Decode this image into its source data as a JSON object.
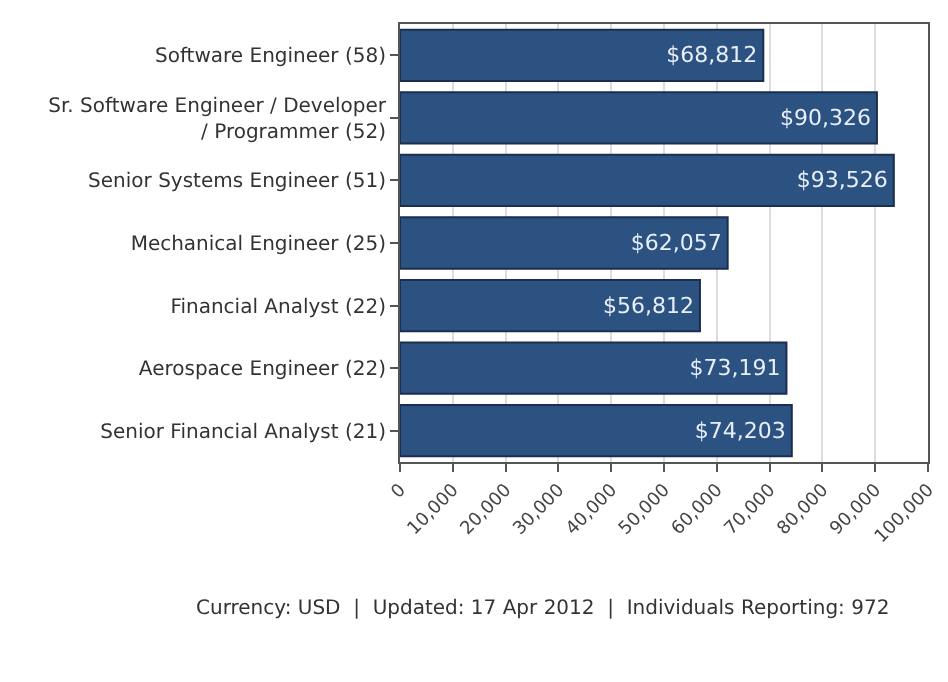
{
  "chart_data": {
    "type": "bar",
    "orientation": "horizontal",
    "categories": [
      "Software Engineer (58)",
      "Sr. Software Engineer / Developer / Programmer (52)",
      "Senior Systems Engineer (51)",
      "Mechanical Engineer (25)",
      "Financial Analyst (22)",
      "Aerospace Engineer (22)",
      "Senior Financial Analyst (21)"
    ],
    "values": [
      68812,
      90326,
      93526,
      62057,
      56812,
      73191,
      74203
    ],
    "value_labels": [
      "$68,812",
      "$90,326",
      "$93,526",
      "$62,057",
      "$56,812",
      "$73,191",
      "$74,203"
    ],
    "color": "#2c5282",
    "xlim": [
      0,
      100000
    ],
    "xticks": [
      {
        "value": 0,
        "label": "0"
      },
      {
        "value": 10000,
        "label": "10,000"
      },
      {
        "value": 20000,
        "label": "20,000"
      },
      {
        "value": 30000,
        "label": "30,000"
      },
      {
        "value": 40000,
        "label": "40,000"
      },
      {
        "value": 50000,
        "label": "50,000"
      },
      {
        "value": 60000,
        "label": "60,000"
      },
      {
        "value": 70000,
        "label": "70,000"
      },
      {
        "value": 80000,
        "label": "80,000"
      },
      {
        "value": 90000,
        "label": "90,000"
      },
      {
        "value": 100000,
        "label": "100,000"
      }
    ],
    "grid": "x",
    "legend": false,
    "annotations": [
      "Currency: USD  |  Updated: 17 Apr 2012  |  Individuals Reporting: 972"
    ]
  }
}
